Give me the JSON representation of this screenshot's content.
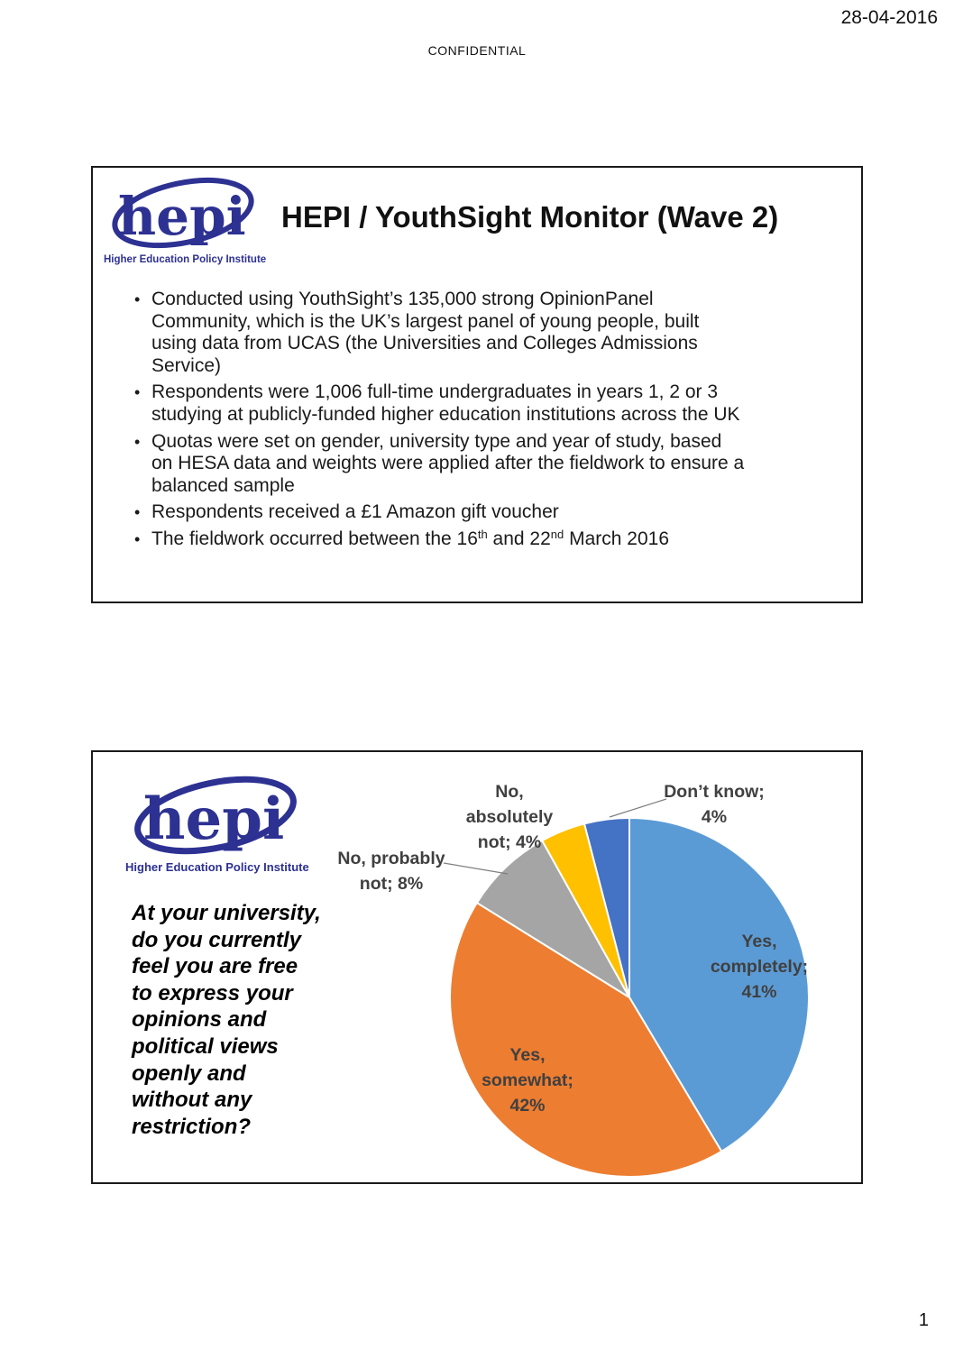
{
  "page": {
    "date": "28-04-2016",
    "confidential": "CONFIDENTIAL",
    "page_number": "1"
  },
  "logo": {
    "text": "hepi",
    "tagline": "Higher Education Policy Institute",
    "color": "#2d3192"
  },
  "slide1": {
    "title": "HEPI / YouthSight Monitor (Wave 2)",
    "bullets": [
      "Conducted using YouthSight’s 135,000 strong OpinionPanel\nCommunity, which is the UK’s largest panel of young people, built\nusing data from UCAS (the Universities and Colleges Admissions\nService)",
      "Respondents were 1,006 full-time undergraduates in years 1, 2 or 3\nstudying at publicly-funded higher education institutions across the UK",
      "Quotas were set on gender, university type and year of study, based\non HESA data and weights were applied after the fieldwork to ensure a\nbalanced sample",
      "Respondents received a £1 Amazon gift voucher"
    ],
    "bullet5": {
      "part1": "The fieldwork occurred between the 16",
      "sup1": "th",
      "part2": " and 22",
      "sup2": "nd",
      "part3": " March 2016"
    }
  },
  "slide2": {
    "question": "At your university,\ndo you currently\nfeel you are free\nto express your\nopinions and\npolitical views\nopenly and\nwithout any\nrestriction?"
  },
  "chart_data": {
    "type": "pie",
    "title": "At your university, do you currently feel you are free to express your opinions and political views openly and without any restriction?",
    "categories": [
      "Yes, completely",
      "Yes, somewhat",
      "No, probably not",
      "No, absolutely not",
      "Don’t know"
    ],
    "values": [
      41,
      42,
      8,
      4,
      4
    ],
    "colors": [
      "#5B9BD5",
      "#ED7D31",
      "#A5A5A5",
      "#FFC000",
      "#4472C4"
    ],
    "start_angle_deg": 0,
    "direction": "clockwise",
    "legend": "none",
    "labels": [
      "Yes,\ncompletely;\n41%",
      "Yes,\nsomewhat;\n42%",
      "No, probably\nnot; 8%",
      "No,\nabsolutely\nnot; 4%",
      "Don’t know;\n4%"
    ]
  }
}
